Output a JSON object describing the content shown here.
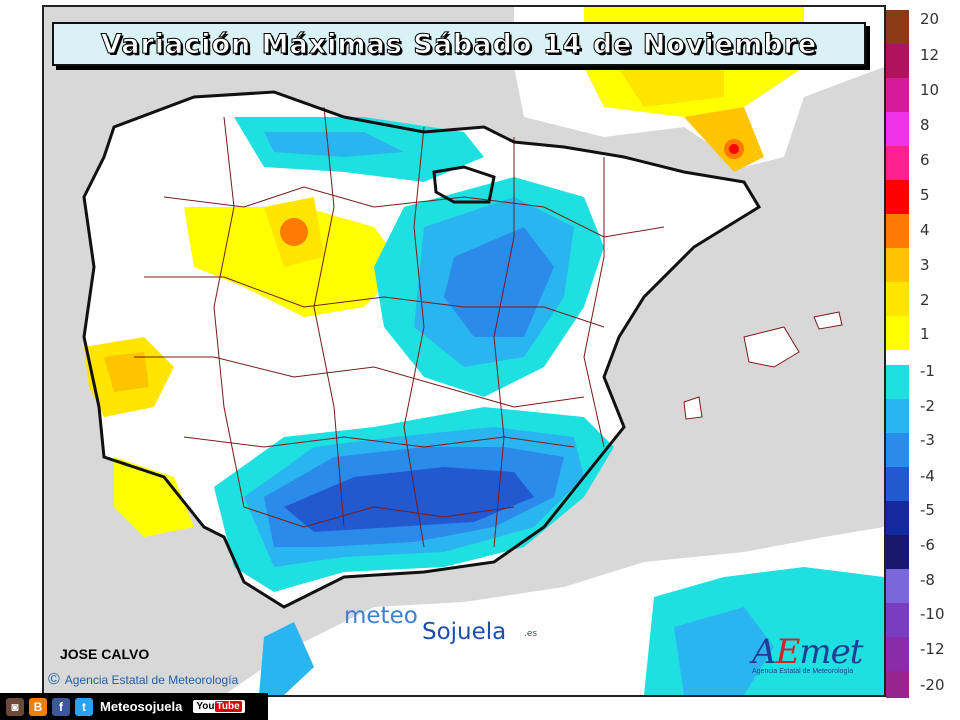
{
  "title": "Variación Máximas Sábado 14 de Noviembre",
  "legend": {
    "positive": [
      {
        "label": "20",
        "color": "#8B3A13"
      },
      {
        "label": "12",
        "color": "#B0135E"
      },
      {
        "label": "10",
        "color": "#D51A9C"
      },
      {
        "label": "8",
        "color": "#F033E6"
      },
      {
        "label": "6",
        "color": "#FF1F8E"
      },
      {
        "label": "5",
        "color": "#FF0000"
      },
      {
        "label": "4",
        "color": "#FF7A00"
      },
      {
        "label": "3",
        "color": "#FFC400"
      },
      {
        "label": "2",
        "color": "#FFE500"
      },
      {
        "label": "1",
        "color": "#FFFF00"
      }
    ],
    "negative": [
      {
        "label": "-1",
        "color": "#1FE0E0"
      },
      {
        "label": "-2",
        "color": "#2BB5F0"
      },
      {
        "label": "-3",
        "color": "#2A8BEA"
      },
      {
        "label": "-4",
        "color": "#2359D0"
      },
      {
        "label": "-5",
        "color": "#142A9C"
      },
      {
        "label": "-6",
        "color": "#16186E"
      },
      {
        "label": "-8",
        "color": "#7B68D8"
      },
      {
        "label": "-10",
        "color": "#7A3CC0"
      },
      {
        "label": "-12",
        "color": "#8C2BA8"
      },
      {
        "label": "-20",
        "color": "#96268E"
      }
    ]
  },
  "author": "JOSE CALVO",
  "agency": "Agencia Estatal de Meteorología",
  "agency_symbol": "©",
  "watermark": {
    "part1": "meteo",
    "part2": "Sojuela",
    "suffix": ".es"
  },
  "aemet_logo": {
    "a": "A",
    "e": "E",
    "rest": "met",
    "subtitle": "Agencia Estatal de Meteorología"
  },
  "social": {
    "icons": [
      "instagram-icon",
      "blogger-icon",
      "facebook-icon",
      "twitter-icon"
    ],
    "name": "Meteosojuela",
    "youtube_you": "You",
    "youtube_tube": "Tube"
  }
}
